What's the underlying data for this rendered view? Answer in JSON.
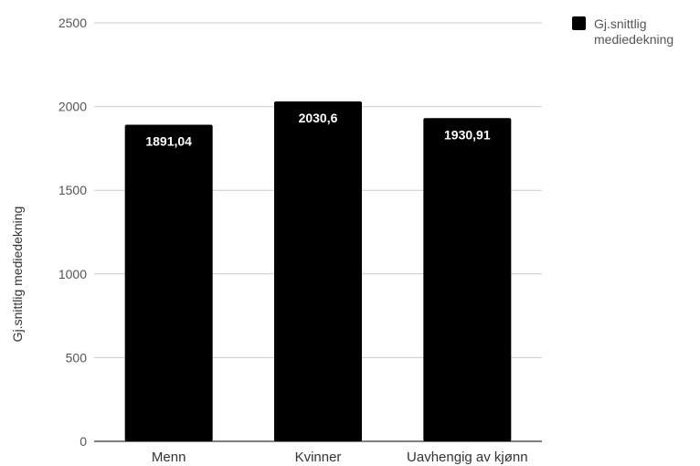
{
  "chart_data": {
    "type": "bar",
    "categories": [
      "Menn",
      "Kvinner",
      "Uavhengig av kjønn"
    ],
    "series": [
      {
        "name": "Gj.snittlig mediedekning",
        "values": [
          1891.04,
          2030.6,
          1930.91
        ],
        "data_labels": [
          "1891,04",
          "2030,6",
          "1930,91"
        ],
        "color": "#000000"
      }
    ],
    "ylabel": "Gj.snittlig mediedekning",
    "xlabel": "",
    "title": "",
    "ylim": [
      0,
      2500
    ],
    "yticks": [
      0,
      500,
      1000,
      1500,
      2000,
      2500
    ],
    "grid": true,
    "gridline_color": "#cccccc",
    "legend": {
      "position": "top-right",
      "lines": [
        "Gj.snittlig",
        "mediedekning"
      ]
    }
  }
}
